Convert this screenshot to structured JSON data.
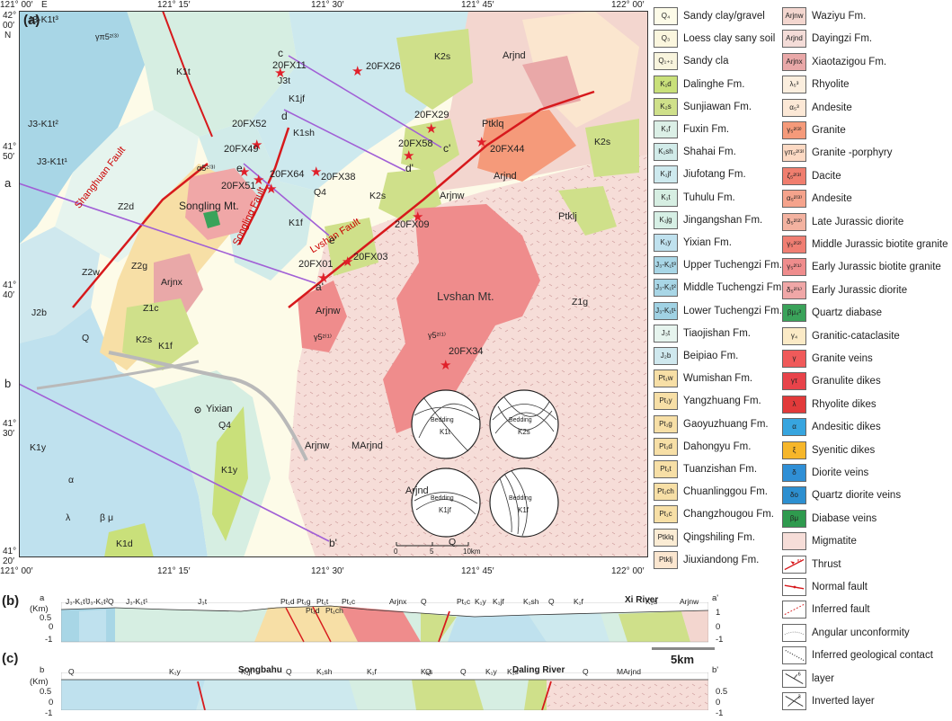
{
  "panels": {
    "a": "(a)",
    "b": "(b)",
    "c": "(c)"
  },
  "map": {
    "top_coords": [
      "121° 00′",
      "121° 15′",
      "121° 30′",
      "121° 45′",
      "122° 00′"
    ],
    "bottom_coords": [
      "121° 00′",
      "121° 15′",
      "121° 30′",
      "121° 45′",
      "122° 00′"
    ],
    "corner_e": "E",
    "left_coords": [
      {
        "deg": "42°",
        "min": "00′",
        "hemi": "N"
      },
      {
        "deg": "41°",
        "min": "50′"
      },
      {
        "deg": "41°",
        "min": "40′"
      },
      {
        "deg": "41°",
        "min": "30′"
      },
      {
        "deg": "41°",
        "min": "20′"
      }
    ],
    "faults": {
      "shanghuan": "Shanghuan Fault",
      "songling": "Songling Fault",
      "lvshan": "Lvshan Fault"
    },
    "places": {
      "songling_mt": "Songling Mt.",
      "lvshan_mt": "Lvshan Mt.",
      "yixian": "Yixian"
    },
    "section_ends": {
      "a": "a",
      "a2": "a'",
      "b": "b",
      "b2": "b'",
      "c": "c",
      "c2": "c'",
      "d": "d",
      "d2": "d'",
      "e": "e",
      "e2": "e'"
    },
    "samples": [
      "20FX11",
      "20FX26",
      "20FX29",
      "20FX52",
      "20FX58",
      "20FX44",
      "20FX49",
      "20FX64",
      "20FX38",
      "20FX51",
      "20FX09",
      "20FX01",
      "20FX03",
      "20FX34"
    ],
    "units": [
      "J3-K1t³",
      "γπ5²⁽³⁾",
      "K1t",
      "J3t",
      "K1jf",
      "K1sh",
      "K2s",
      "Arjnd",
      "Ptklq",
      "Arjnw",
      "J3-K1t²",
      "J3-K1t¹",
      "Z2d",
      "Z2g",
      "Z2w",
      "Z1c",
      "J2b",
      "Q",
      "Q4",
      "Arjnx",
      "K1f",
      "K1y",
      "K1d",
      "Ptklj",
      "α5²⁽³⁾",
      "γ5²⁽¹⁾",
      "MArjnd",
      "Z1g",
      "β μ",
      "λ",
      "α"
    ],
    "stereonets": [
      {
        "label": "Bedding",
        "unit": "K1t"
      },
      {
        "label": "Bedding",
        "unit": "K2s"
      },
      {
        "label": "Bedding",
        "unit": "K1jf"
      },
      {
        "label": "Bedding",
        "unit": "K1f"
      }
    ],
    "scale": {
      "ticks": [
        "0",
        "5",
        "10km"
      ]
    }
  },
  "legend": {
    "col1": [
      {
        "code": "Q₄",
        "label": "Sandy clay/gravel",
        "color": "#fdfbe8"
      },
      {
        "code": "Q₃",
        "label": "Loess clay sany soil",
        "color": "#fbf6de"
      },
      {
        "code": "Q₁₊₂",
        "label": "Sandy cla",
        "color": "#f8f4dd"
      },
      {
        "code": "K₁d",
        "label": "Dalinghe Fm.",
        "color": "#c9e07a"
      },
      {
        "code": "K₂s",
        "label": "Sunjiawan Fm.",
        "color": "#cfe08a"
      },
      {
        "code": "K₁f",
        "label": "Fuxin Fm.",
        "color": "#dbefe6"
      },
      {
        "code": "K₁sh",
        "label": "Shahai Fm.",
        "color": "#d1ebe9"
      },
      {
        "code": "K₁jf",
        "label": "Jiufotang Fm.",
        "color": "#cde9ee"
      },
      {
        "code": "K₁t",
        "label": "Tuhulu Fm.",
        "color": "#d6eee2"
      },
      {
        "code": "K₁jg",
        "label": "Jingangshan Fm.",
        "color": "#d6efe5"
      },
      {
        "code": "K₁y",
        "label": "Yixian Fm.",
        "color": "#bfe1ee"
      },
      {
        "code": "J₃-K₁t³",
        "label": "Upper Tuchengzi Fm.",
        "color": "#a8d6e6"
      },
      {
        "code": "J₃-K₁t²",
        "label": "Middle Tuchengzi Fm.",
        "color": "#a8d6e6"
      },
      {
        "code": "J₃-K₁t¹",
        "label": "Lower Tuchengzi Fm.",
        "color": "#a0d2e4"
      },
      {
        "code": "J₃t",
        "label": "Tiaojishan Fm.",
        "color": "#e6f4ee"
      },
      {
        "code": "J₂b",
        "label": "Beipiao Fm.",
        "color": "#cfe8ee"
      },
      {
        "code": "Pt₁w",
        "label": "Wumishan Fm.",
        "color": "#f7dfa6"
      },
      {
        "code": "Pt₁y",
        "label": "Yangzhuang Fm.",
        "color": "#f7dfa6"
      },
      {
        "code": "Pt₁g",
        "label": "Gaoyuzhuang Fm.",
        "color": "#f7dfa6"
      },
      {
        "code": "Pt₁d",
        "label": "Dahongyu Fm.",
        "color": "#f7dfa6"
      },
      {
        "code": "Pt₁t",
        "label": "Tuanzishan Fm.",
        "color": "#f7dfa6"
      },
      {
        "code": "Pt₁ch",
        "label": "Chuanlinggou Fm.",
        "color": "#f7dfa6"
      },
      {
        "code": "Pt₁c",
        "label": "Changzhougou Fm.",
        "color": "#f7dfa6"
      },
      {
        "code": "Ptklq",
        "label": "Qingshiling Fm.",
        "color": "#fbecd4"
      },
      {
        "code": "Ptklj",
        "label": "Jiuxiandong Fm.",
        "color": "#fbe6cf"
      }
    ],
    "col2": [
      {
        "code": "Arjnw",
        "label": "Waziyu Fm.",
        "color": "#f3d6cf",
        "kind": "swatch"
      },
      {
        "code": "Arjnd",
        "label": "Dayingzi Fm.",
        "color": "#f4dcd8",
        "kind": "swatch"
      },
      {
        "code": "Arjnx",
        "label": "Xiaotazigou Fm.",
        "color": "#e9a8a8",
        "kind": "swatch"
      },
      {
        "code": "λ₅³",
        "label": "Rhyolite",
        "color": "#fbeede",
        "kind": "swatch"
      },
      {
        "code": "α₅³",
        "label": "Andesite",
        "color": "#fce8d6",
        "kind": "swatch"
      },
      {
        "code": "γ₅²⁽³⁾",
        "label": "Granite",
        "color": "#f59a7a",
        "kind": "swatch"
      },
      {
        "code": "γπ₅²⁽³⁾",
        "label": "Granite -porphyry",
        "color": "#fcd9c3",
        "kind": "swatch"
      },
      {
        "code": "ζ₅²⁽³⁾",
        "label": "Dacite",
        "color": "#f07e6e",
        "kind": "swatch"
      },
      {
        "code": "α₅²⁽³⁾",
        "label": "Andesite",
        "color": "#f5a38c",
        "kind": "swatch"
      },
      {
        "code": "δ₅²⁽²⁾",
        "label": "Late Jurassic diorite",
        "color": "#f3b2a0",
        "kind": "swatch"
      },
      {
        "code": "γ₅²⁽²⁾",
        "label": "Middle Jurassic biotite granite",
        "color": "#f07e72",
        "kind": "swatch"
      },
      {
        "code": "γ₅²⁽¹⁾",
        "label": "Early Jurassic biotite granite",
        "color": "#ef8c8c",
        "kind": "swatch"
      },
      {
        "code": "δ₅²⁽¹⁾",
        "label": "Early Jurassic  diorite",
        "color": "#f0a7a7",
        "kind": "swatch"
      },
      {
        "code": "βμ₄³",
        "label": "Quartz diabase",
        "color": "#3aa35a",
        "kind": "swatch"
      },
      {
        "code": "γ₄",
        "label": "Granitic-cataclasite",
        "color": "#fbeac6",
        "kind": "swatch"
      },
      {
        "code": "γ",
        "label": "Granite veins",
        "color": "#f05a5a",
        "kind": "swatch"
      },
      {
        "code": "γτ",
        "label": "Granulite dikes",
        "color": "#e8434a",
        "kind": "swatch"
      },
      {
        "code": "λ",
        "label": "Rhyolite dikes",
        "color": "#e23a3a",
        "kind": "swatch"
      },
      {
        "code": "α",
        "label": "Andesitic dikes",
        "color": "#37a5df",
        "kind": "swatch"
      },
      {
        "code": "ξ",
        "label": "Syenitic dikes",
        "color": "#f6b62a",
        "kind": "swatch"
      },
      {
        "code": "δ",
        "label": "Diorite veins",
        "color": "#2f8fd6",
        "kind": "swatch"
      },
      {
        "code": "δο",
        "label": "Quartz diorite veins",
        "color": "#2d8fd0",
        "kind": "swatch"
      },
      {
        "code": "βμ",
        "label": "Diabase veins",
        "color": "#2f9a4e",
        "kind": "swatch"
      },
      {
        "code": "",
        "label": "Migmatite",
        "color": "#f6ddd8",
        "kind": "swatch"
      },
      {
        "code": "",
        "label": "Thrust",
        "kind": "thrust"
      },
      {
        "code": "",
        "label": "Normal fault",
        "kind": "normal"
      },
      {
        "code": "",
        "label": "Inferred fault",
        "kind": "inferred"
      },
      {
        "code": "",
        "label": "Angular unconformity",
        "kind": "unconf"
      },
      {
        "code": "",
        "label": "Inferred geological contact",
        "kind": "contact"
      },
      {
        "code": "",
        "label": "layer",
        "kind": "layer",
        "value": "6"
      },
      {
        "code": "",
        "label": "Inverted layer",
        "kind": "inverted",
        "value": "3"
      }
    ]
  },
  "section_b": {
    "left_end": "a",
    "right_end": "a'",
    "unit": "(Km)",
    "y_ticks": [
      "0.5",
      "0",
      "-1"
    ],
    "right_ticks": [
      "1",
      "0",
      "-1"
    ],
    "labels": [
      "J₃-K₁t³",
      "J₃-K₁t²",
      "Q",
      "J₃-K₁t¹",
      "J₃t",
      "Pt₁d",
      "Pt₁g",
      "Pt₁d",
      "Pt₁t",
      "Pt₁ch",
      "Pt₁c",
      "Arjnx",
      "Q",
      "Pt₁c",
      "K₁y",
      "K₁jf",
      "K₁sh",
      "Q",
      "K₁f",
      "K₂s",
      "Arjnw"
    ],
    "river": "Xi River",
    "scale": "5km"
  },
  "section_c": {
    "left_end": "b",
    "right_end": "b'",
    "unit": "(Km)",
    "y_ticks": [
      "0.5",
      "0",
      "-1"
    ],
    "right_ticks": [
      "0.5",
      "0",
      "-1"
    ],
    "labels": [
      "Q",
      "K₁y",
      "K₁jf",
      "Q",
      "K₁sh",
      "K₁f",
      "K₂s",
      "Q",
      "Q",
      "K₁y",
      "K₁s",
      "Q",
      "MArjnd"
    ],
    "places": [
      "Songbahu",
      "Daling River"
    ]
  }
}
